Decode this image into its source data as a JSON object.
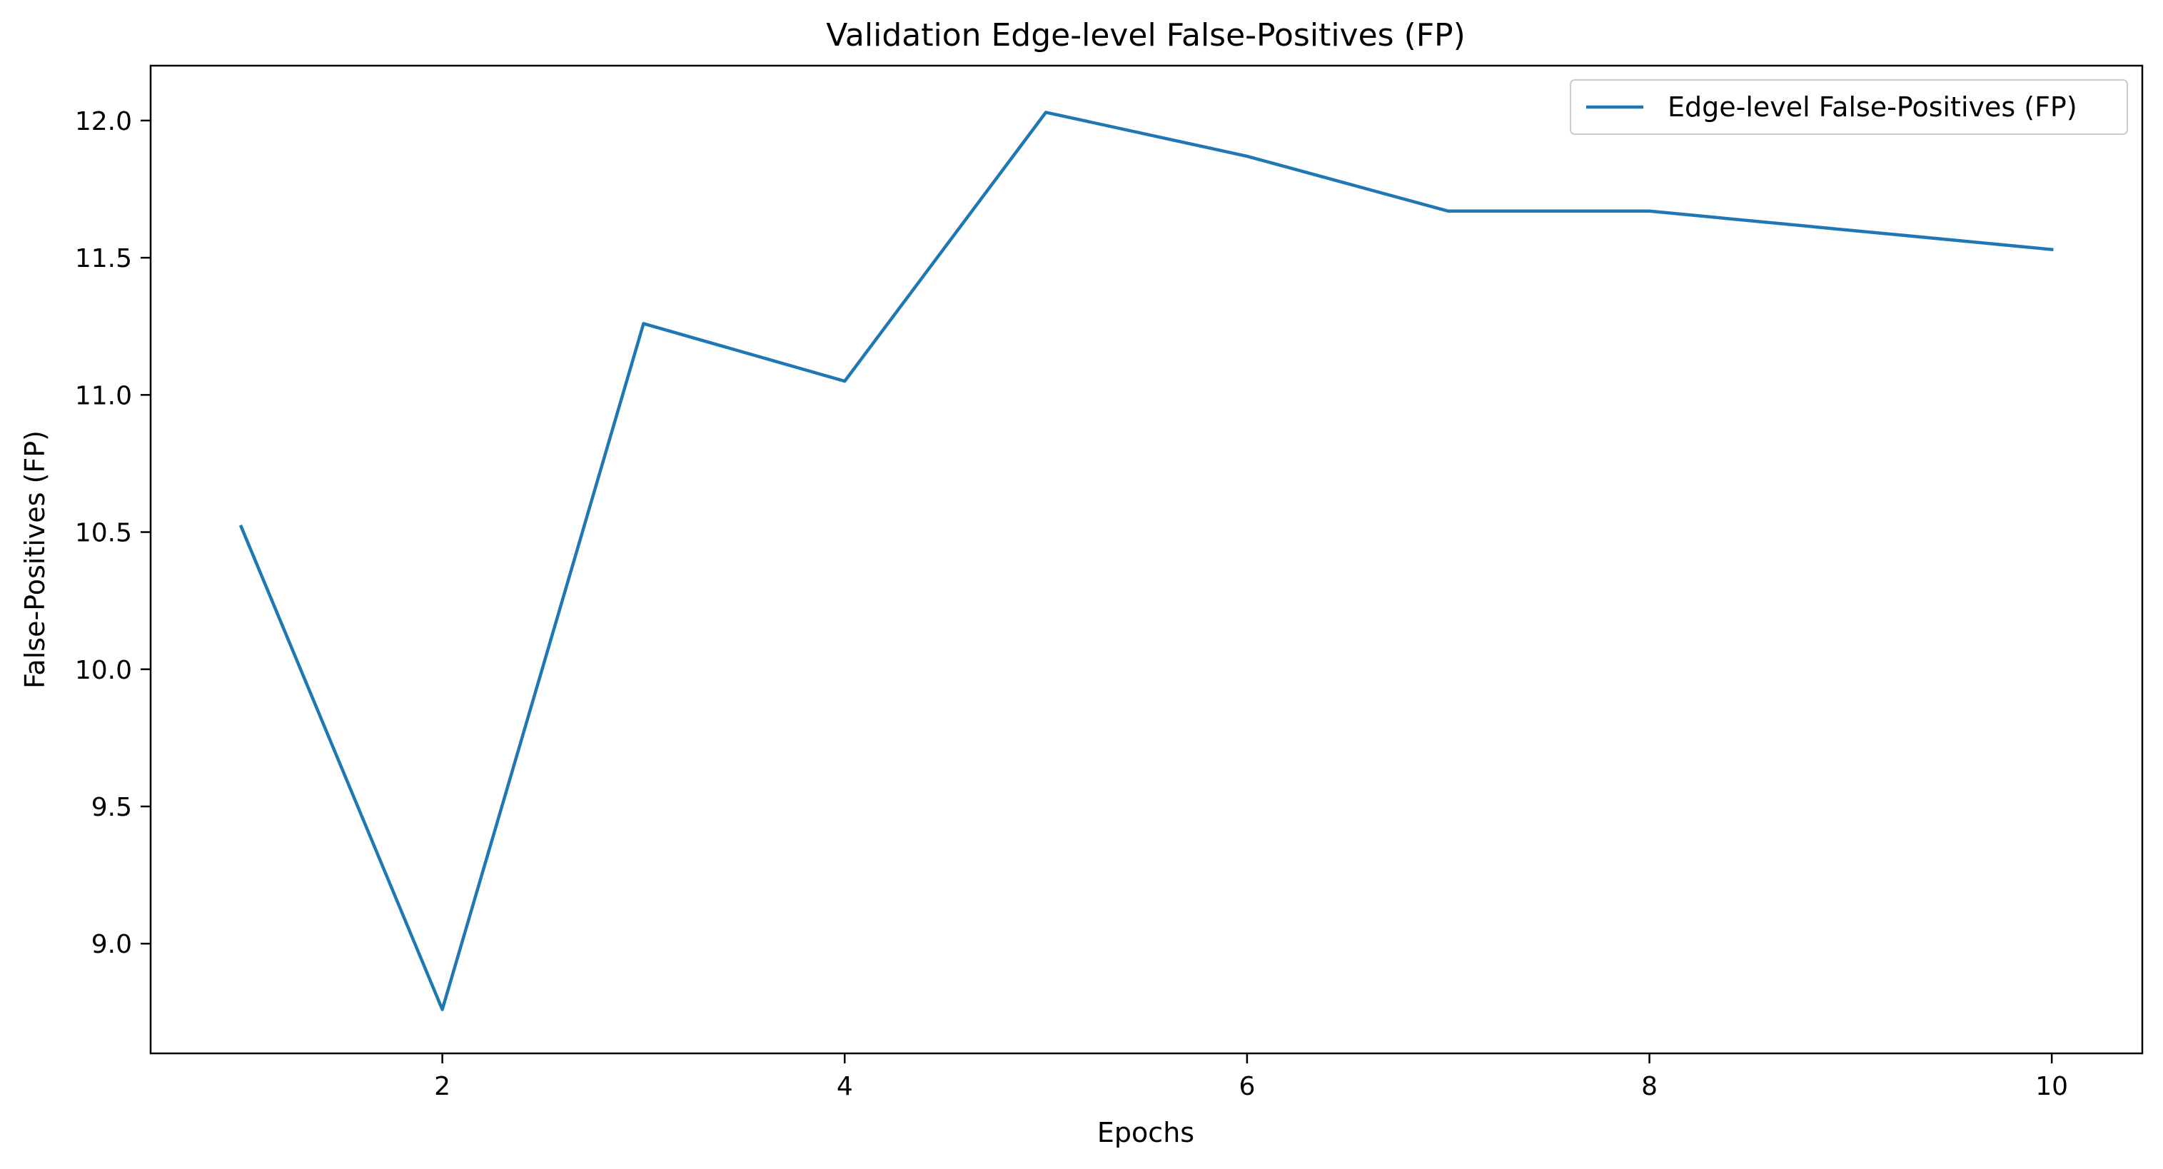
{
  "chart_data": {
    "type": "line",
    "title": "Validation Edge-level False-Positives (FP)",
    "xlabel": "Epochs",
    "ylabel": "False-Positives (FP)",
    "xlim": [
      0.55,
      10.45
    ],
    "ylim": [
      8.6,
      12.2
    ],
    "xticks": [
      2,
      4,
      6,
      8,
      10
    ],
    "xtick_labels": [
      "2",
      "4",
      "6",
      "8",
      "10"
    ],
    "yticks": [
      9.0,
      9.5,
      10.0,
      10.5,
      11.0,
      11.5,
      12.0
    ],
    "ytick_labels": [
      "9.0",
      "9.5",
      "10.0",
      "10.5",
      "11.0",
      "11.5",
      "12.0"
    ],
    "grid": false,
    "legend_position": "top-right",
    "series": [
      {
        "name": "Edge-level False-Positives (FP)",
        "color": "#1f77b4",
        "x": [
          1,
          2,
          3,
          4,
          5,
          6,
          7,
          8,
          9,
          10
        ],
        "y": [
          10.52,
          8.76,
          11.26,
          11.05,
          12.03,
          11.87,
          11.67,
          11.67,
          11.6,
          11.53
        ]
      }
    ]
  }
}
